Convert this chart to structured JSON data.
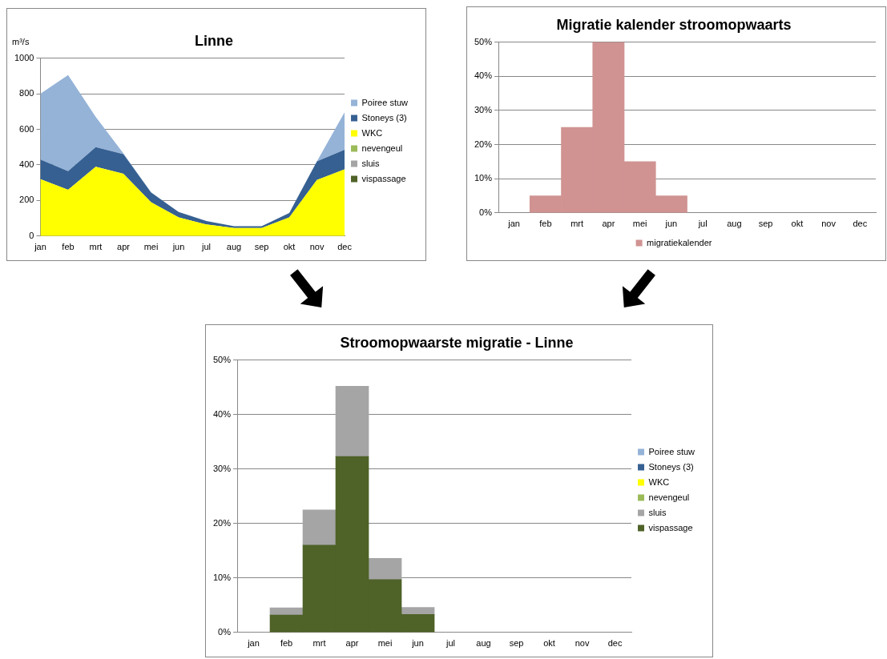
{
  "chart_data": [
    {
      "type": "area",
      "title": "Linne",
      "ylabel": "m³/s",
      "stacked": true,
      "categories": [
        "jan",
        "feb",
        "mrt",
        "apr",
        "mei",
        "jun",
        "jul",
        "aug",
        "sep",
        "okt",
        "nov",
        "dec"
      ],
      "ylim": [
        0,
        1000
      ],
      "yticks": [
        0,
        200,
        400,
        600,
        800,
        1000
      ],
      "grid": "y",
      "legend": "right",
      "series": [
        {
          "name": "vispassage",
          "color": "#4f6228",
          "values": [
            null,
            null,
            null,
            null,
            null,
            null,
            null,
            null,
            null,
            null,
            null,
            null
          ]
        },
        {
          "name": "sluis",
          "color": "#a5a5a5",
          "values": [
            null,
            null,
            null,
            null,
            null,
            null,
            null,
            null,
            null,
            null,
            null,
            null
          ]
        },
        {
          "name": "nevengeul",
          "color": "#9bbb59",
          "values": [
            null,
            null,
            null,
            null,
            null,
            null,
            null,
            null,
            null,
            null,
            null,
            null
          ]
        },
        {
          "name": "WKC",
          "color": "#ffff00",
          "values": [
            320,
            260,
            390,
            350,
            190,
            105,
            65,
            45,
            45,
            105,
            315,
            375
          ]
        },
        {
          "name": "Stoneys (3)",
          "color": "#366092",
          "values": [
            110,
            105,
            110,
            110,
            55,
            30,
            20,
            10,
            10,
            25,
            105,
            110
          ]
        },
        {
          "name": "Poiree stuw",
          "color": "#95b3d7",
          "values": [
            370,
            540,
            170,
            5,
            0,
            0,
            0,
            0,
            0,
            0,
            0,
            210
          ]
        }
      ]
    },
    {
      "type": "bar",
      "title": "Migratie kalender stroomopwaarts",
      "categories": [
        "jan",
        "feb",
        "mrt",
        "apr",
        "mei",
        "jun",
        "jul",
        "aug",
        "sep",
        "okt",
        "nov",
        "dec"
      ],
      "ylim": [
        0,
        50
      ],
      "yticks": [
        {
          "value": 0,
          "label": "0%"
        },
        {
          "value": 10,
          "label": "10%"
        },
        {
          "value": 20,
          "label": "20%"
        },
        {
          "value": 30,
          "label": "30%"
        },
        {
          "value": 40,
          "label": "40%"
        },
        {
          "value": 50,
          "label": "50%"
        }
      ],
      "grid": "y",
      "legend": "bottom",
      "series": [
        {
          "name": "migratiekalender",
          "color": "#d09392",
          "values": [
            null,
            5,
            25,
            50,
            15,
            5,
            null,
            null,
            null,
            null,
            null,
            null
          ]
        }
      ]
    },
    {
      "type": "bar",
      "title": "Stroomopwaarste migratie - Linne",
      "stacked": true,
      "categories": [
        "jan",
        "feb",
        "mrt",
        "apr",
        "mei",
        "jun",
        "jul",
        "aug",
        "sep",
        "okt",
        "nov",
        "dec"
      ],
      "ylim": [
        0,
        50
      ],
      "yticks": [
        {
          "value": 0,
          "label": "0%"
        },
        {
          "value": 10,
          "label": "10%"
        },
        {
          "value": 20,
          "label": "20%"
        },
        {
          "value": 30,
          "label": "30%"
        },
        {
          "value": 40,
          "label": "40%"
        },
        {
          "value": 50,
          "label": "50%"
        }
      ],
      "grid": "y",
      "legend": "right",
      "series": [
        {
          "name": "vispassage",
          "color": "#4f6228",
          "values": [
            null,
            3.2,
            16,
            32.3,
            9.7,
            3.3,
            null,
            null,
            null,
            null,
            null,
            null
          ]
        },
        {
          "name": "sluis",
          "color": "#a5a5a5",
          "values": [
            null,
            1.3,
            6.5,
            12.9,
            3.9,
            1.3,
            null,
            null,
            null,
            null,
            null,
            null
          ]
        },
        {
          "name": "nevengeul",
          "color": "#9bbb59",
          "values": [
            null,
            null,
            null,
            null,
            null,
            null,
            null,
            null,
            null,
            null,
            null,
            null
          ]
        },
        {
          "name": "WKC",
          "color": "#ffff00",
          "values": [
            null,
            null,
            null,
            null,
            null,
            null,
            null,
            null,
            null,
            null,
            null,
            null
          ]
        },
        {
          "name": "Stoneys (3)",
          "color": "#366092",
          "values": [
            null,
            null,
            null,
            null,
            null,
            null,
            null,
            null,
            null,
            null,
            null,
            null
          ]
        },
        {
          "name": "Poiree stuw",
          "color": "#95b3d7",
          "values": [
            null,
            null,
            null,
            null,
            null,
            null,
            null,
            null,
            null,
            null,
            null,
            null
          ]
        }
      ]
    }
  ]
}
